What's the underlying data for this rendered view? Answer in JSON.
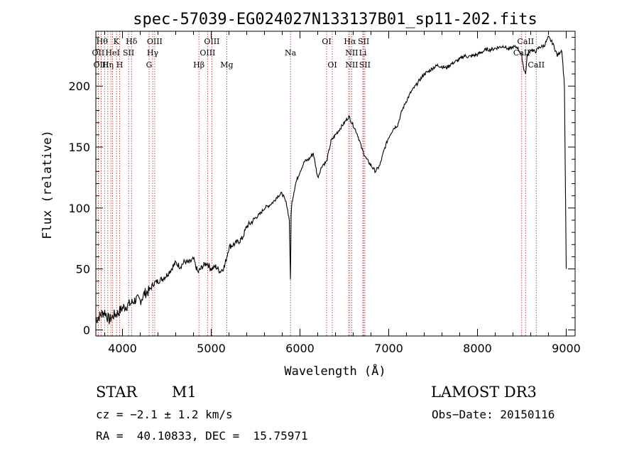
{
  "chart_data": {
    "type": "line",
    "title": "spec-57039-EG024027N133137B01_sp11-202.fits",
    "xlabel": "Wavelength (Å)",
    "ylabel": "Flux (relative)",
    "xlim": [
      3700,
      9100
    ],
    "ylim": [
      -5,
      245
    ],
    "xticks": [
      4000,
      5000,
      6000,
      7000,
      8000,
      9000
    ],
    "yticks": [
      0,
      50,
      100,
      150,
      200
    ],
    "series": [
      {
        "name": "flux",
        "x": [
          3700,
          3750,
          3800,
          3850,
          3900,
          3950,
          4000,
          4050,
          4100,
          4150,
          4200,
          4250,
          4300,
          4350,
          4400,
          4450,
          4500,
          4550,
          4600,
          4650,
          4700,
          4750,
          4800,
          4850,
          4900,
          4950,
          5000,
          5050,
          5100,
          5150,
          5200,
          5250,
          5300,
          5350,
          5400,
          5450,
          5500,
          5550,
          5600,
          5650,
          5700,
          5750,
          5800,
          5850,
          5880,
          5893,
          5900,
          5910,
          5950,
          6000,
          6050,
          6100,
          6150,
          6200,
          6250,
          6300,
          6350,
          6400,
          6450,
          6500,
          6550,
          6600,
          6650,
          6700,
          6750,
          6800,
          6850,
          6900,
          6950,
          7000,
          7050,
          7100,
          7150,
          7200,
          7250,
          7300,
          7350,
          7400,
          7450,
          7500,
          7550,
          7600,
          7650,
          7700,
          7750,
          7800,
          7850,
          7900,
          7950,
          8000,
          8050,
          8100,
          8150,
          8200,
          8250,
          8300,
          8350,
          8400,
          8450,
          8498,
          8520,
          8542,
          8560,
          8600,
          8650,
          8700,
          8750,
          8800,
          8850,
          8900,
          8950,
          8980,
          9000
        ],
        "y": [
          8,
          12,
          15,
          8,
          12,
          14,
          18,
          20,
          22,
          25,
          24,
          30,
          32,
          38,
          40,
          42,
          45,
          50,
          55,
          52,
          56,
          55,
          58,
          47,
          52,
          55,
          50,
          52,
          48,
          52,
          68,
          70,
          72,
          75,
          85,
          88,
          92,
          95,
          100,
          102,
          105,
          110,
          112,
          103,
          90,
          40,
          95,
          105,
          120,
          130,
          138,
          140,
          145,
          125,
          135,
          138,
          155,
          160,
          165,
          170,
          175,
          168,
          160,
          148,
          140,
          135,
          130,
          135,
          148,
          158,
          165,
          168,
          180,
          188,
          195,
          200,
          205,
          210,
          212,
          215,
          217,
          216,
          215,
          218,
          220,
          222,
          225,
          224,
          225,
          226,
          228,
          230,
          230,
          231,
          232,
          233,
          230,
          232,
          232,
          225,
          215,
          210,
          225,
          230,
          228,
          232,
          233,
          240,
          235,
          225,
          230,
          200,
          50
        ]
      }
    ]
  },
  "spectral_lines": {
    "top_row_1": [
      "Hθ",
      "K",
      "Hδ",
      "OIII",
      "OIII",
      "OI",
      "Hα",
      "SII",
      "CaII"
    ],
    "top_row_2": [
      "OII",
      "HeI",
      "SII",
      "Hγ",
      "OIII",
      "Na",
      "NII",
      "Li",
      "CaII"
    ],
    "top_row_3": [
      "OIII",
      "Hη",
      "H",
      "G",
      "Hβ",
      "Mg",
      "OI",
      "NII",
      "SII",
      "CaII"
    ]
  },
  "info": {
    "class": "STAR",
    "subclass": "M1",
    "survey": "LAMOST DR3",
    "cz": "cz = −2.1 ± 1.2 km/s",
    "obs_date": "Obs−Date: 20150116",
    "coords": "RA =  40.10833, DEC =  15.75971"
  }
}
